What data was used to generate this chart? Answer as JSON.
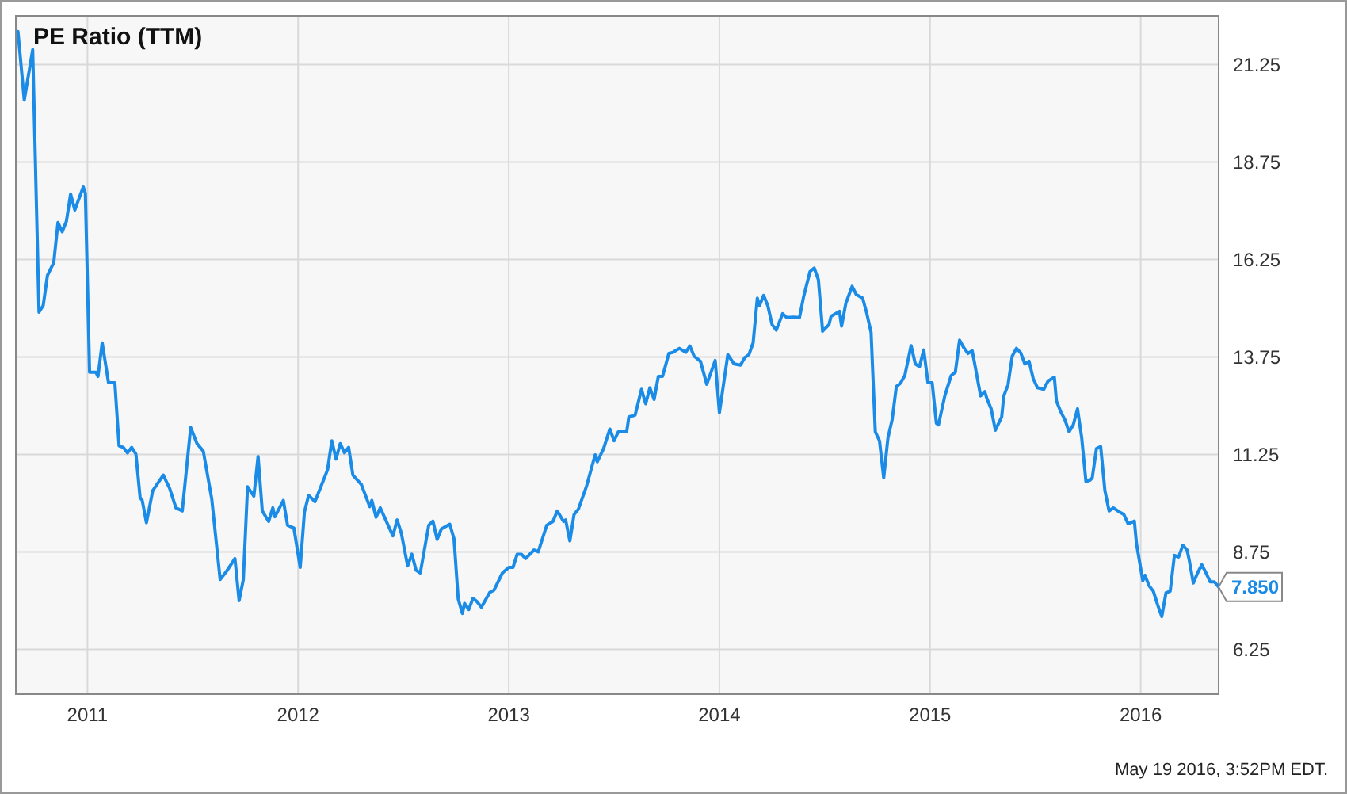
{
  "chart_data": {
    "type": "line",
    "title": "PE Ratio (TTM)",
    "xlim": [
      2010.66,
      2016.37
    ],
    "xticks": [
      2011,
      2012,
      2013,
      2014,
      2015,
      2016
    ],
    "ylim": [
      5.1,
      22.5
    ],
    "yticks": [
      {
        "value": 6.25,
        "label": "6.25"
      },
      {
        "value": 8.75,
        "label": "8.75"
      },
      {
        "value": 11.25,
        "label": "11.25"
      },
      {
        "value": 13.75,
        "label": "13.75"
      },
      {
        "value": 16.25,
        "label": "16.25"
      },
      {
        "value": 18.75,
        "label": "18.75"
      },
      {
        "value": 21.25,
        "label": "21.25"
      }
    ],
    "grid": true,
    "marker": "none",
    "line_style": "solid",
    "annotations": [
      {
        "text": "7.850",
        "x": 2016.37,
        "y": 7.85
      },
      "May 19 2016, 3:52PM EDT."
    ],
    "series": [
      {
        "color": "#1a8be6",
        "x": [
          2010.67,
          2010.7,
          2010.74,
          2010.77,
          2010.79,
          2010.81,
          2010.84,
          2010.86,
          2010.88,
          2010.9,
          2010.92,
          2010.94,
          2010.98,
          2010.99,
          2011.01,
          2011.04,
          2011.05,
          2011.07,
          2011.1,
          2011.13,
          2011.15,
          2011.17,
          2011.19,
          2011.21,
          2011.23,
          2011.25,
          2011.26,
          2011.28,
          2011.31,
          2011.36,
          2011.39,
          2011.42,
          2011.45,
          2011.49,
          2011.52,
          2011.55,
          2011.59,
          2011.63,
          2011.66,
          2011.7,
          2011.72,
          2011.74,
          2011.76,
          2011.79,
          2011.81,
          2011.83,
          2011.86,
          2011.88,
          2011.89,
          2011.93,
          2011.95,
          2011.98,
          2012.01,
          2012.03,
          2012.05,
          2012.08,
          2012.13,
          2012.14,
          2012.16,
          2012.18,
          2012.2,
          2012.22,
          2012.24,
          2012.26,
          2012.3,
          2012.34,
          2012.35,
          2012.37,
          2012.39,
          2012.45,
          2012.47,
          2012.49,
          2012.52,
          2012.54,
          2012.56,
          2012.58,
          2012.62,
          2012.64,
          2012.66,
          2012.68,
          2012.72,
          2012.74,
          2012.76,
          2012.78,
          2012.79,
          2012.81,
          2012.83,
          2012.85,
          2012.87,
          2012.91,
          2012.93,
          2012.97,
          2013.0,
          2013.02,
          2013.04,
          2013.06,
          2013.08,
          2013.12,
          2013.14,
          2013.18,
          2013.21,
          2013.23,
          2013.26,
          2013.27,
          2013.29,
          2013.31,
          2013.33,
          2013.37,
          2013.41,
          2013.42,
          2013.45,
          2013.48,
          2013.5,
          2013.52,
          2013.56,
          2013.57,
          2013.6,
          2013.63,
          2013.65,
          2013.67,
          2013.69,
          2013.71,
          2013.73,
          2013.76,
          2013.78,
          2013.81,
          2013.84,
          2013.86,
          2013.88,
          2013.91,
          2013.94,
          2013.98,
          2014.0,
          2014.04,
          2014.07,
          2014.1,
          2014.12,
          2014.14,
          2014.16,
          2014.18,
          2014.19,
          2014.21,
          2014.23,
          2014.25,
          2014.27,
          2014.3,
          2014.32,
          2014.35,
          2014.38,
          2014.4,
          2014.43,
          2014.45,
          2014.47,
          2014.49,
          2014.52,
          2014.53,
          2014.57,
          2014.58,
          2014.6,
          2014.63,
          2014.65,
          2014.68,
          2014.7,
          2014.72,
          2014.74,
          2014.76,
          2014.78,
          2014.8,
          2014.82,
          2014.84,
          2014.86,
          2014.88,
          2014.91,
          2014.93,
          2014.95,
          2014.97,
          2014.99,
          2015.01,
          2015.03,
          2015.04,
          2015.07,
          2015.1,
          2015.12,
          2015.14,
          2015.16,
          2015.18,
          2015.2,
          2015.21,
          2015.24,
          2015.26,
          2015.27,
          2015.29,
          2015.31,
          2015.34,
          2015.35,
          2015.37,
          2015.39,
          2015.41,
          2015.43,
          2015.45,
          2015.47,
          2015.49,
          2015.51,
          2015.54,
          2015.56,
          2015.59,
          2015.6,
          2015.62,
          2015.64,
          2015.66,
          2015.68,
          2015.7,
          2015.72,
          2015.74,
          2015.76,
          2015.77,
          2015.79,
          2015.81,
          2015.83,
          2015.85,
          2015.87,
          2015.9,
          2015.92,
          2015.94,
          2015.97,
          2015.98,
          2016.01,
          2016.02,
          2016.04,
          2016.06,
          2016.08,
          2016.1,
          2016.12,
          2016.14,
          2016.16,
          2016.18,
          2016.2,
          2016.22,
          2016.23,
          2016.25,
          2016.27,
          2016.29,
          2016.31,
          2016.33,
          2016.35,
          2016.37
        ],
        "values": [
          22.1,
          20.34,
          21.63,
          14.9,
          15.07,
          15.84,
          16.17,
          17.2,
          16.96,
          17.23,
          17.93,
          17.52,
          18.11,
          17.95,
          13.36,
          13.36,
          13.25,
          14.11,
          13.09,
          13.09,
          11.47,
          11.43,
          11.29,
          11.43,
          11.26,
          10.14,
          10.07,
          9.5,
          10.32,
          10.72,
          10.38,
          9.88,
          9.8,
          11.94,
          11.53,
          11.33,
          10.11,
          8.04,
          8.25,
          8.58,
          7.5,
          8.04,
          10.42,
          10.18,
          11.2,
          9.8,
          9.53,
          9.88,
          9.65,
          10.07,
          9.43,
          9.36,
          8.35,
          9.77,
          10.2,
          10.04,
          10.72,
          10.86,
          11.6,
          11.13,
          11.53,
          11.29,
          11.43,
          10.72,
          10.48,
          9.91,
          10.07,
          9.64,
          9.88,
          9.16,
          9.57,
          9.23,
          8.39,
          8.69,
          8.28,
          8.21,
          9.43,
          9.54,
          9.07,
          9.34,
          9.46,
          9.09,
          7.54,
          7.17,
          7.43,
          7.27,
          7.56,
          7.47,
          7.33,
          7.71,
          7.77,
          8.21,
          8.35,
          8.35,
          8.69,
          8.69,
          8.58,
          8.8,
          8.75,
          9.43,
          9.53,
          9.8,
          9.53,
          9.57,
          9.03,
          9.71,
          9.84,
          10.45,
          11.24,
          11.06,
          11.4,
          11.9,
          11.6,
          11.83,
          11.83,
          12.21,
          12.26,
          12.92,
          12.55,
          12.96,
          12.66,
          13.25,
          13.25,
          13.84,
          13.87,
          13.97,
          13.87,
          14.03,
          13.77,
          13.64,
          13.05,
          13.66,
          12.32,
          13.81,
          13.57,
          13.54,
          13.73,
          13.81,
          14.11,
          15.26,
          15.06,
          15.33,
          15.06,
          14.58,
          14.44,
          14.86,
          14.76,
          14.77,
          14.76,
          15.3,
          15.94,
          16.03,
          15.73,
          14.41,
          14.58,
          14.79,
          14.92,
          14.54,
          15.12,
          15.56,
          15.35,
          15.26,
          14.86,
          14.38,
          11.83,
          11.6,
          10.65,
          11.67,
          12.14,
          12.99,
          13.08,
          13.27,
          14.04,
          13.57,
          13.5,
          13.93,
          13.09,
          13.09,
          12.05,
          12.01,
          12.75,
          13.27,
          13.36,
          14.18,
          13.99,
          13.84,
          13.91,
          13.63,
          12.75,
          12.86,
          12.68,
          12.42,
          11.87,
          12.21,
          12.75,
          13.03,
          13.77,
          13.97,
          13.86,
          13.57,
          13.64,
          13.19,
          12.96,
          12.92,
          13.13,
          13.23,
          12.62,
          12.35,
          12.14,
          11.83,
          12.01,
          12.42,
          11.67,
          10.55,
          10.59,
          10.65,
          11.4,
          11.45,
          10.32,
          9.8,
          9.88,
          9.77,
          9.71,
          9.47,
          9.54,
          8.96,
          8.01,
          8.15,
          7.88,
          7.74,
          7.4,
          7.09,
          7.7,
          7.74,
          8.66,
          8.62,
          8.92,
          8.8,
          8.55,
          7.95,
          8.21,
          8.42,
          8.21,
          7.98,
          7.98,
          7.85
        ]
      }
    ]
  }
}
